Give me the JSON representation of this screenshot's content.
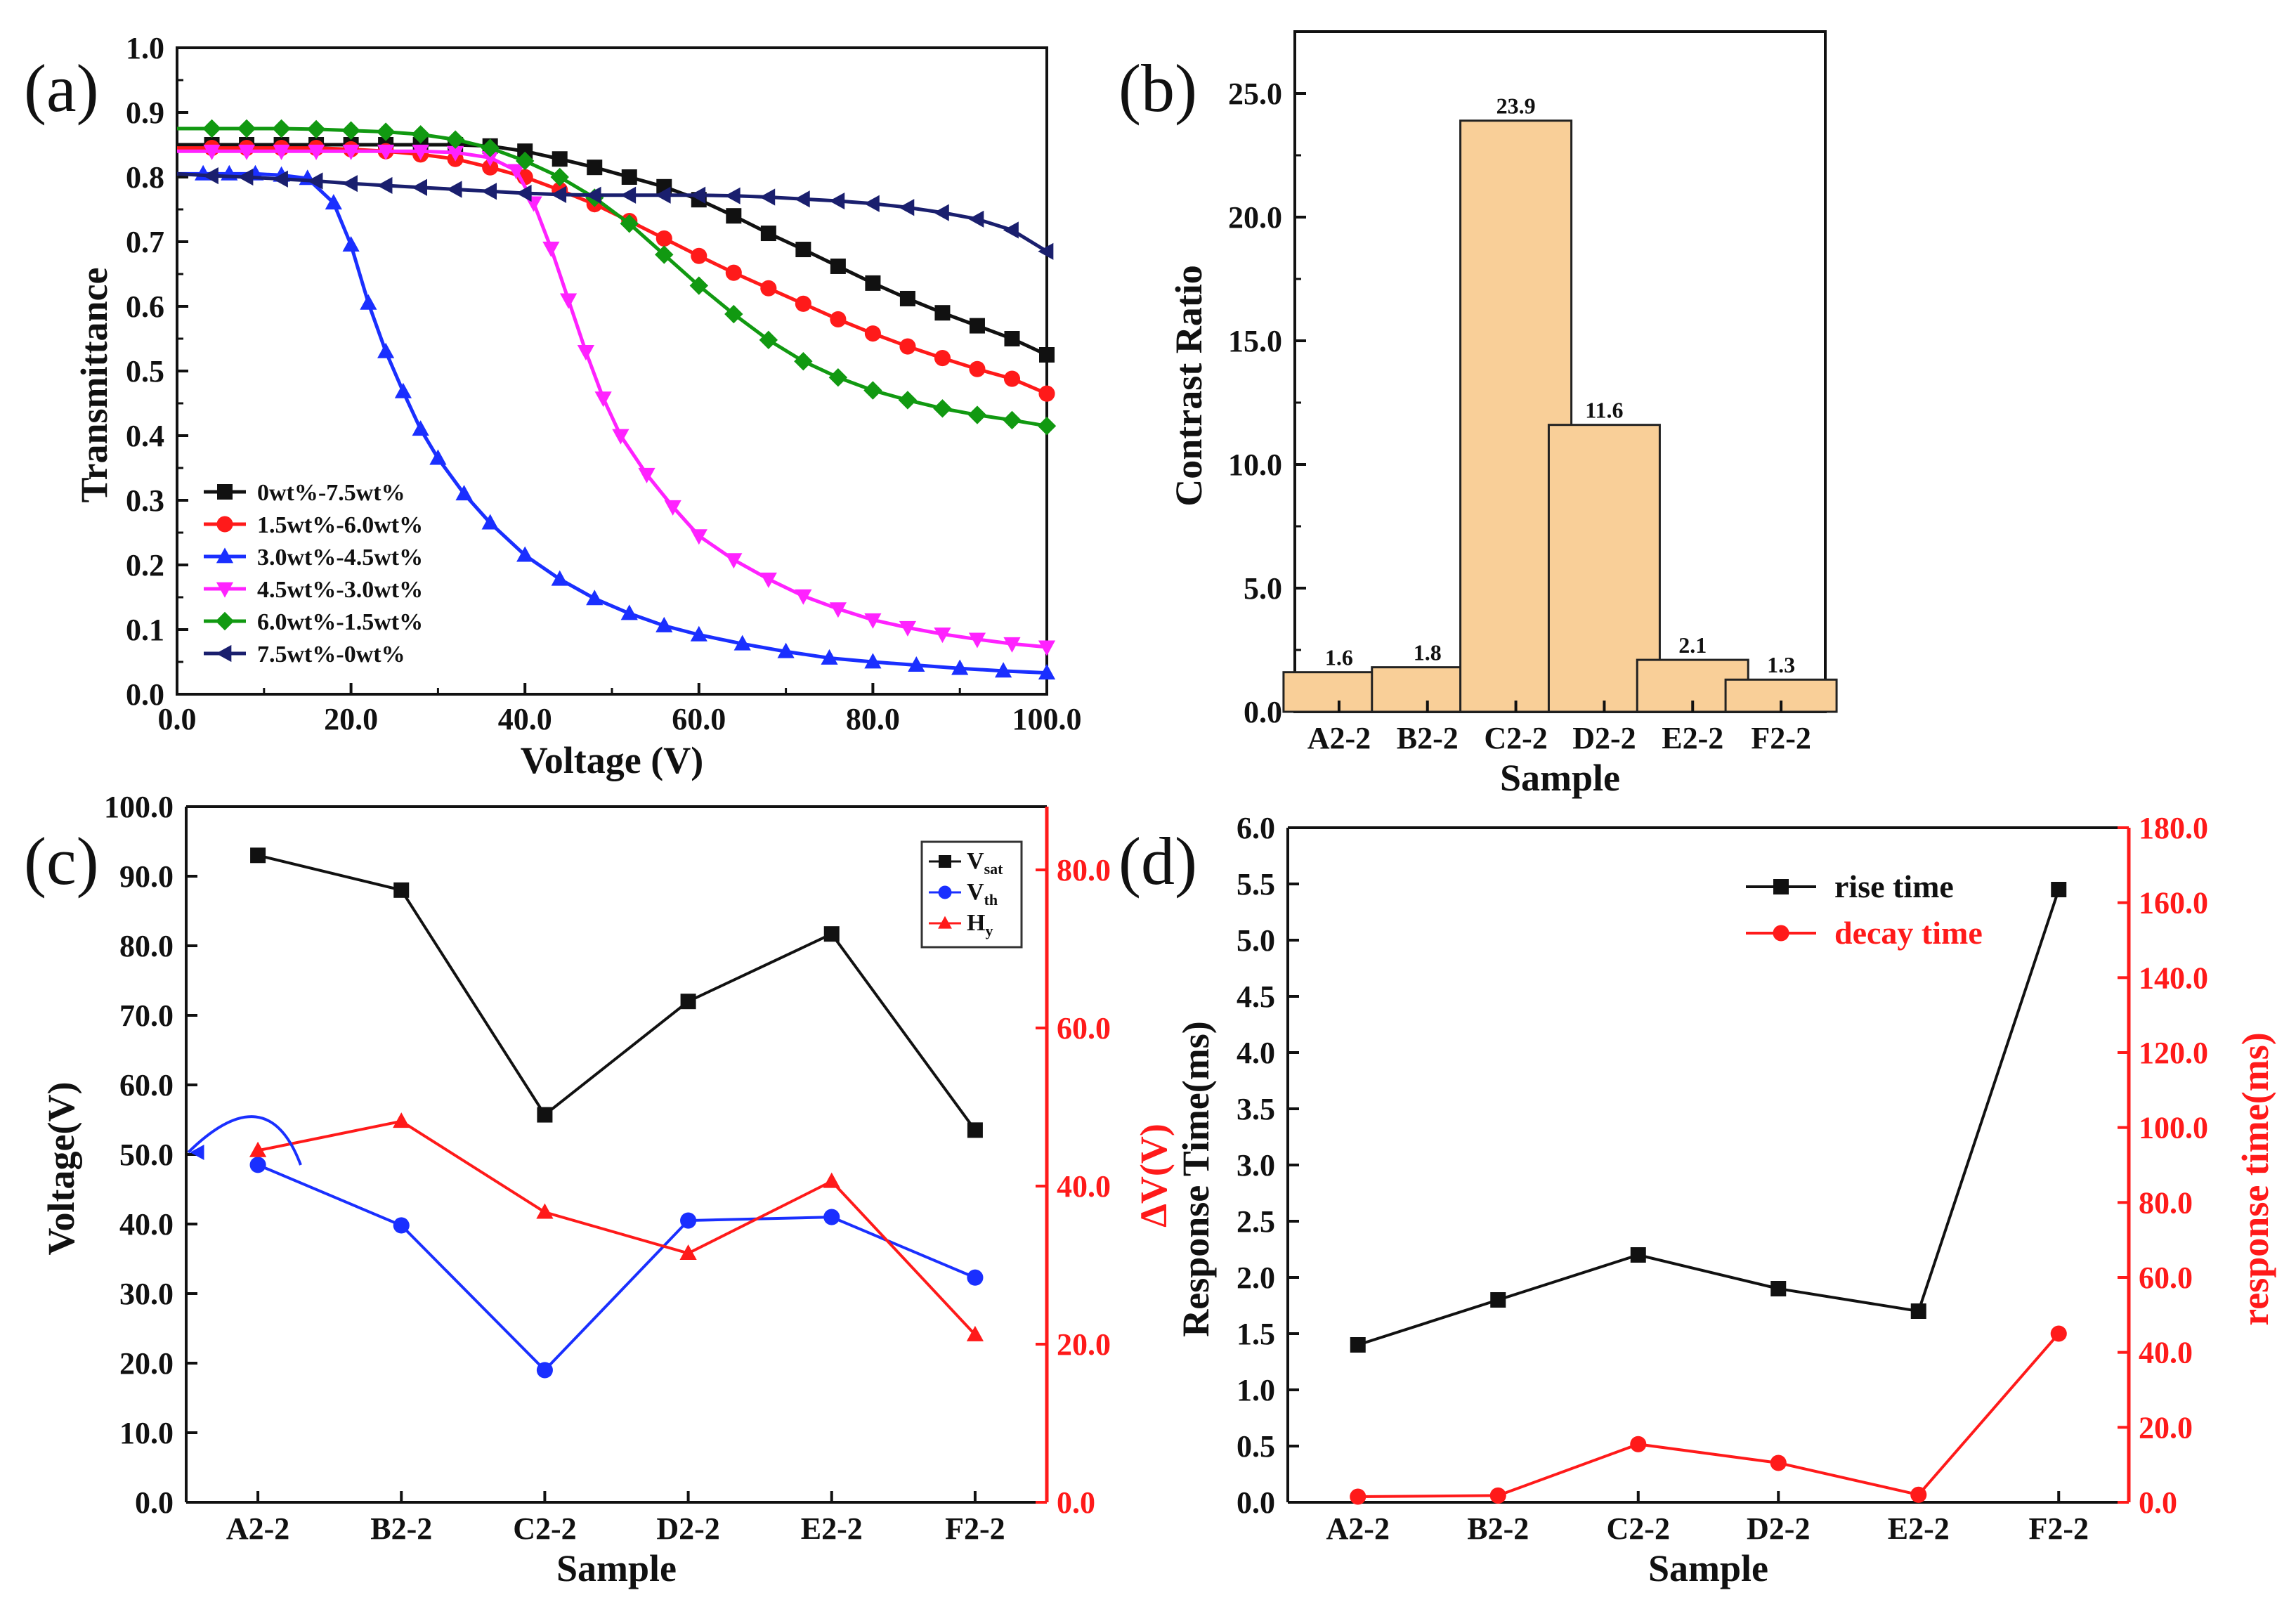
{
  "panels": {
    "a": {
      "label": "(a)"
    },
    "b": {
      "label": "(b)"
    },
    "c": {
      "label": "(c)"
    },
    "d": {
      "label": "(d)"
    }
  },
  "colors": {
    "black": "#111111",
    "red": "#ff1a1a",
    "blue": "#1a2fff",
    "magenta": "#ff22ff",
    "green": "#119911",
    "navy": "#1a1f6e",
    "bar_fill": "#f9cf98",
    "bar_stroke": "#222222"
  },
  "chart_data": [
    {
      "id": "a",
      "type": "line",
      "xlabel": "Voltage (V)",
      "ylabel": "Transmittance",
      "xlim": [
        0,
        100
      ],
      "ylim": [
        0,
        1.0
      ],
      "xticks": [
        "0.0",
        "20.0",
        "40.0",
        "60.0",
        "80.0",
        "100.0"
      ],
      "yticks": [
        "0.0",
        "0.1",
        "0.2",
        "0.3",
        "0.4",
        "0.5",
        "0.6",
        "0.7",
        "0.8",
        "0.9",
        "1.0"
      ],
      "legend": "bottom-left",
      "series": [
        {
          "name": "0wt%-7.5wt%",
          "color": "black",
          "marker": "square",
          "x": [
            0,
            4,
            8,
            12,
            16,
            20,
            24,
            28,
            32,
            36,
            40,
            44,
            48,
            52,
            56,
            60,
            64,
            68,
            72,
            76,
            80,
            84,
            88,
            92,
            96,
            100
          ],
          "y": [
            0.85,
            0.85,
            0.85,
            0.85,
            0.85,
            0.85,
            0.85,
            0.85,
            0.85,
            0.848,
            0.84,
            0.828,
            0.815,
            0.8,
            0.785,
            0.765,
            0.74,
            0.713,
            0.688,
            0.662,
            0.636,
            0.612,
            0.59,
            0.57,
            0.55,
            0.525
          ]
        },
        {
          "name": "1.5wt%-6.0wt%",
          "color": "red",
          "marker": "circle",
          "x": [
            0,
            4,
            8,
            12,
            16,
            20,
            24,
            28,
            32,
            36,
            40,
            44,
            48,
            52,
            56,
            60,
            64,
            68,
            72,
            76,
            80,
            84,
            88,
            92,
            96,
            100
          ],
          "y": [
            0.845,
            0.845,
            0.845,
            0.845,
            0.845,
            0.843,
            0.84,
            0.835,
            0.828,
            0.815,
            0.8,
            0.78,
            0.758,
            0.732,
            0.705,
            0.678,
            0.652,
            0.628,
            0.604,
            0.58,
            0.558,
            0.538,
            0.52,
            0.503,
            0.488,
            0.465
          ]
        },
        {
          "name": "3.0wt%-4.5wt%",
          "color": "blue",
          "marker": "triangle-up",
          "x": [
            0,
            3,
            6,
            9,
            12,
            15,
            18,
            20,
            22,
            24,
            26,
            28,
            30,
            33,
            36,
            40,
            44,
            48,
            52,
            56,
            60,
            65,
            70,
            75,
            80,
            85,
            90,
            95,
            100
          ],
          "y": [
            0.805,
            0.805,
            0.805,
            0.805,
            0.803,
            0.798,
            0.76,
            0.695,
            0.605,
            0.53,
            0.468,
            0.41,
            0.365,
            0.31,
            0.265,
            0.215,
            0.178,
            0.148,
            0.125,
            0.106,
            0.092,
            0.078,
            0.066,
            0.056,
            0.05,
            0.045,
            0.04,
            0.036,
            0.033
          ]
        },
        {
          "name": "4.5wt%-3.0wt%",
          "color": "magenta",
          "marker": "triangle-down",
          "x": [
            0,
            4,
            8,
            12,
            16,
            20,
            24,
            28,
            32,
            36,
            39,
            41,
            43,
            45,
            47,
            49,
            51,
            54,
            57,
            60,
            64,
            68,
            72,
            76,
            80,
            84,
            88,
            92,
            96,
            100
          ],
          "y": [
            0.84,
            0.84,
            0.84,
            0.84,
            0.84,
            0.84,
            0.84,
            0.84,
            0.838,
            0.83,
            0.81,
            0.76,
            0.69,
            0.61,
            0.53,
            0.458,
            0.4,
            0.34,
            0.29,
            0.245,
            0.208,
            0.178,
            0.152,
            0.132,
            0.115,
            0.103,
            0.093,
            0.085,
            0.078,
            0.073
          ]
        },
        {
          "name": "6.0wt%-1.5wt%",
          "color": "green",
          "marker": "diamond",
          "x": [
            0,
            4,
            8,
            12,
            16,
            20,
            24,
            28,
            32,
            36,
            40,
            44,
            48,
            52,
            56,
            60,
            64,
            68,
            72,
            76,
            80,
            84,
            88,
            92,
            96,
            100
          ],
          "y": [
            0.875,
            0.875,
            0.875,
            0.875,
            0.874,
            0.872,
            0.87,
            0.866,
            0.858,
            0.845,
            0.825,
            0.8,
            0.768,
            0.728,
            0.68,
            0.632,
            0.588,
            0.548,
            0.515,
            0.49,
            0.47,
            0.455,
            0.442,
            0.432,
            0.424,
            0.415
          ]
        },
        {
          "name": "7.5wt%-0wt%",
          "color": "navy",
          "marker": "triangle-left",
          "x": [
            0,
            4,
            8,
            12,
            16,
            20,
            24,
            28,
            32,
            36,
            40,
            44,
            48,
            52,
            56,
            60,
            64,
            68,
            72,
            76,
            80,
            84,
            88,
            92,
            96,
            100
          ],
          "y": [
            0.805,
            0.802,
            0.8,
            0.797,
            0.794,
            0.79,
            0.787,
            0.784,
            0.781,
            0.778,
            0.775,
            0.773,
            0.772,
            0.772,
            0.772,
            0.772,
            0.771,
            0.769,
            0.766,
            0.763,
            0.759,
            0.753,
            0.745,
            0.735,
            0.718,
            0.685
          ]
        }
      ]
    },
    {
      "id": "b",
      "type": "bar",
      "xlabel": "Sample",
      "ylabel": "Contrast Ratio",
      "ylim": [
        0,
        27.5
      ],
      "yticks": [
        "0.0",
        "5.0",
        "10.0",
        "15.0",
        "20.0",
        "25.0"
      ],
      "categories": [
        "A2-2",
        "B2-2",
        "C2-2",
        "D2-2",
        "E2-2",
        "F2-2"
      ],
      "values": [
        1.6,
        1.8,
        23.9,
        11.6,
        2.1,
        1.3
      ],
      "value_labels": [
        "1.6",
        "1.8",
        "23.9",
        "11.6",
        "2.1",
        "1.3"
      ]
    },
    {
      "id": "c",
      "type": "line",
      "xlabel": "Sample",
      "ylabel": "Voltage(V)",
      "y2label": "ΔV(V)",
      "categories": [
        "A2-2",
        "B2-2",
        "C2-2",
        "D2-2",
        "E2-2",
        "F2-2"
      ],
      "ylim": [
        0,
        100
      ],
      "yticks": [
        "0.0",
        "10.0",
        "20.0",
        "30.0",
        "40.0",
        "50.0",
        "60.0",
        "70.0",
        "80.0",
        "90.0",
        "100.0"
      ],
      "y2lim": [
        0,
        88
      ],
      "y2ticks": [
        "0.0",
        "20.0",
        "40.0",
        "60.0",
        "80.0"
      ],
      "legend": "top-right",
      "series": [
        {
          "name": "V",
          "sub": "sat",
          "color": "black",
          "marker": "square",
          "axis": "left",
          "values": [
            93.0,
            88.0,
            55.7,
            72.0,
            81.7,
            53.5
          ]
        },
        {
          "name": "V",
          "sub": "th",
          "color": "blue",
          "marker": "circle",
          "axis": "left",
          "values": [
            48.5,
            39.8,
            19.0,
            40.5,
            41.0,
            32.3
          ]
        },
        {
          "name": "H",
          "sub": "y",
          "color": "red",
          "marker": "triangle-up",
          "axis": "right",
          "values": [
            44.5,
            48.2,
            36.7,
            31.5,
            40.6,
            21.2
          ]
        }
      ]
    },
    {
      "id": "d",
      "type": "line",
      "xlabel": "Sample",
      "ylabel": "Response Time(ms)",
      "y2label": "response time(ms)",
      "categories": [
        "A2-2",
        "B2-2",
        "C2-2",
        "D2-2",
        "E2-2",
        "F2-2"
      ],
      "ylim": [
        0,
        6.0
      ],
      "yticks": [
        "0.0",
        "0.5",
        "1.0",
        "1.5",
        "2.0",
        "2.5",
        "3.0",
        "3.5",
        "4.0",
        "4.5",
        "5.0",
        "5.5",
        "6.0"
      ],
      "y2lim": [
        0,
        180
      ],
      "y2ticks": [
        "0.0",
        "20.0",
        "40.0",
        "60.0",
        "80.0",
        "100.0",
        "120.0",
        "140.0",
        "160.0",
        "180.0"
      ],
      "legend": "top-right",
      "series": [
        {
          "name": "rise time",
          "color": "black",
          "marker": "square",
          "axis": "left",
          "values": [
            1.4,
            1.8,
            2.2,
            1.9,
            1.7,
            5.45
          ]
        },
        {
          "name": "decay time",
          "color": "red",
          "marker": "circle",
          "axis": "right",
          "values": [
            1.5,
            1.8,
            15.5,
            10.5,
            2.0,
            45.0
          ]
        }
      ]
    }
  ]
}
